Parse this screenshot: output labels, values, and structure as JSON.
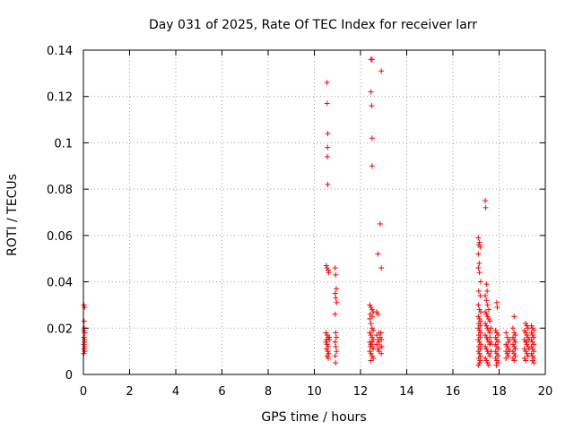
{
  "chart_data": {
    "type": "scatter",
    "title": "Day 031 of 2025, Rate Of TEC Index for receiver larr",
    "xlabel": "GPS time / hours",
    "ylabel": "ROTI / TECUs",
    "xlim": [
      0,
      20
    ],
    "ylim": [
      0,
      0.14
    ],
    "x_ticks": [
      "0",
      "2",
      "4",
      "6",
      "8",
      "10",
      "12",
      "14",
      "16",
      "18",
      "20"
    ],
    "y_ticks": [
      "0",
      "0.02",
      "0.04",
      "0.06",
      "0.08",
      "0.1",
      "0.12",
      "0.14"
    ],
    "grid": true,
    "marker": "+",
    "marker_color": "#ff0000",
    "series": [
      {
        "name": "ROTI",
        "points": [
          [
            0.02,
            0.03
          ],
          [
            0.05,
            0.029
          ],
          [
            0.03,
            0.023
          ],
          [
            0.02,
            0.019
          ],
          [
            0.06,
            0.018
          ],
          [
            0.03,
            0.016
          ],
          [
            0.06,
            0.015
          ],
          [
            0.02,
            0.013
          ],
          [
            0.05,
            0.012
          ],
          [
            0.03,
            0.011
          ],
          [
            0.06,
            0.01
          ],
          [
            0.02,
            0.009
          ],
          [
            0.05,
            0.014
          ],
          [
            0.04,
            0.02
          ],
          [
            10.55,
            0.126
          ],
          [
            10.55,
            0.117
          ],
          [
            10.58,
            0.104
          ],
          [
            10.57,
            0.098
          ],
          [
            10.56,
            0.094
          ],
          [
            10.58,
            0.082
          ],
          [
            10.52,
            0.047
          ],
          [
            10.55,
            0.046
          ],
          [
            10.6,
            0.045
          ],
          [
            10.62,
            0.044
          ],
          [
            10.5,
            0.018
          ],
          [
            10.55,
            0.017
          ],
          [
            10.6,
            0.016
          ],
          [
            10.65,
            0.015
          ],
          [
            10.5,
            0.014
          ],
          [
            10.55,
            0.013
          ],
          [
            10.6,
            0.012
          ],
          [
            10.52,
            0.011
          ],
          [
            10.58,
            0.01
          ],
          [
            10.62,
            0.009
          ],
          [
            10.55,
            0.008
          ],
          [
            10.6,
            0.007
          ],
          [
            10.65,
            0.016
          ],
          [
            10.53,
            0.015
          ],
          [
            10.9,
            0.046
          ],
          [
            10.92,
            0.043
          ],
          [
            10.95,
            0.037
          ],
          [
            10.9,
            0.035
          ],
          [
            10.93,
            0.033
          ],
          [
            10.96,
            0.031
          ],
          [
            10.9,
            0.026
          ],
          [
            10.92,
            0.018
          ],
          [
            10.95,
            0.016
          ],
          [
            10.9,
            0.014
          ],
          [
            10.93,
            0.012
          ],
          [
            10.96,
            0.01
          ],
          [
            10.9,
            0.008
          ],
          [
            10.92,
            0.005
          ],
          [
            12.45,
            0.136
          ],
          [
            12.5,
            0.136
          ],
          [
            12.45,
            0.122
          ],
          [
            12.48,
            0.116
          ],
          [
            12.5,
            0.102
          ],
          [
            12.5,
            0.09
          ],
          [
            12.4,
            0.03
          ],
          [
            12.45,
            0.029
          ],
          [
            12.5,
            0.028
          ],
          [
            12.55,
            0.027
          ],
          [
            12.42,
            0.026
          ],
          [
            12.5,
            0.025
          ],
          [
            12.4,
            0.024
          ],
          [
            12.45,
            0.022
          ],
          [
            12.5,
            0.02
          ],
          [
            12.55,
            0.019
          ],
          [
            12.4,
            0.018
          ],
          [
            12.45,
            0.017
          ],
          [
            12.5,
            0.016
          ],
          [
            12.55,
            0.015
          ],
          [
            12.4,
            0.014
          ],
          [
            12.45,
            0.013
          ],
          [
            12.5,
            0.012
          ],
          [
            12.55,
            0.011
          ],
          [
            12.4,
            0.01
          ],
          [
            12.45,
            0.009
          ],
          [
            12.5,
            0.008
          ],
          [
            12.55,
            0.007
          ],
          [
            12.45,
            0.006
          ],
          [
            12.5,
            0.014
          ],
          [
            12.42,
            0.012
          ],
          [
            12.7,
            0.027
          ],
          [
            12.75,
            0.026
          ],
          [
            12.8,
            0.018
          ],
          [
            12.7,
            0.017
          ],
          [
            12.85,
            0.016
          ],
          [
            12.75,
            0.015
          ],
          [
            12.8,
            0.014
          ],
          [
            12.7,
            0.013
          ],
          [
            12.85,
            0.012
          ],
          [
            12.75,
            0.011
          ],
          [
            12.8,
            0.01
          ],
          [
            12.75,
            0.052
          ],
          [
            12.9,
            0.046
          ],
          [
            12.85,
            0.065
          ],
          [
            12.9,
            0.131
          ],
          [
            12.88,
            0.018
          ],
          [
            12.9,
            0.015
          ],
          [
            12.92,
            0.012
          ],
          [
            12.9,
            0.009
          ],
          [
            17.1,
            0.059
          ],
          [
            17.15,
            0.057
          ],
          [
            17.12,
            0.056
          ],
          [
            17.18,
            0.055
          ],
          [
            17.1,
            0.052
          ],
          [
            17.14,
            0.048
          ],
          [
            17.1,
            0.046
          ],
          [
            17.15,
            0.044
          ],
          [
            17.2,
            0.04
          ],
          [
            17.12,
            0.036
          ],
          [
            17.18,
            0.034
          ],
          [
            17.1,
            0.03
          ],
          [
            17.15,
            0.028
          ],
          [
            17.2,
            0.027
          ],
          [
            17.1,
            0.025
          ],
          [
            17.15,
            0.024
          ],
          [
            17.2,
            0.023
          ],
          [
            17.12,
            0.022
          ],
          [
            17.18,
            0.021
          ],
          [
            17.1,
            0.02
          ],
          [
            17.15,
            0.019
          ],
          [
            17.2,
            0.018
          ],
          [
            17.12,
            0.017
          ],
          [
            17.18,
            0.016
          ],
          [
            17.1,
            0.015
          ],
          [
            17.15,
            0.014
          ],
          [
            17.2,
            0.013
          ],
          [
            17.12,
            0.012
          ],
          [
            17.18,
            0.011
          ],
          [
            17.1,
            0.01
          ],
          [
            17.15,
            0.009
          ],
          [
            17.2,
            0.008
          ],
          [
            17.12,
            0.007
          ],
          [
            17.18,
            0.006
          ],
          [
            17.15,
            0.005
          ],
          [
            17.1,
            0.004
          ],
          [
            17.4,
            0.075
          ],
          [
            17.42,
            0.072
          ],
          [
            17.45,
            0.039
          ],
          [
            17.48,
            0.036
          ],
          [
            17.4,
            0.034
          ],
          [
            17.45,
            0.032
          ],
          [
            17.5,
            0.03
          ],
          [
            17.55,
            0.028
          ],
          [
            17.4,
            0.027
          ],
          [
            17.45,
            0.026
          ],
          [
            17.5,
            0.025
          ],
          [
            17.55,
            0.024
          ],
          [
            17.6,
            0.023
          ],
          [
            17.4,
            0.022
          ],
          [
            17.45,
            0.021
          ],
          [
            17.5,
            0.02
          ],
          [
            17.55,
            0.019
          ],
          [
            17.6,
            0.018
          ],
          [
            17.4,
            0.017
          ],
          [
            17.45,
            0.016
          ],
          [
            17.5,
            0.015
          ],
          [
            17.55,
            0.014
          ],
          [
            17.6,
            0.013
          ],
          [
            17.4,
            0.012
          ],
          [
            17.45,
            0.011
          ],
          [
            17.5,
            0.01
          ],
          [
            17.55,
            0.009
          ],
          [
            17.6,
            0.008
          ],
          [
            17.4,
            0.007
          ],
          [
            17.45,
            0.006
          ],
          [
            17.5,
            0.005
          ],
          [
            17.55,
            0.004
          ],
          [
            17.6,
            0.016
          ],
          [
            17.65,
            0.014
          ],
          [
            17.65,
            0.02
          ],
          [
            17.65,
            0.01
          ],
          [
            17.9,
            0.031
          ],
          [
            17.92,
            0.029
          ],
          [
            17.85,
            0.019
          ],
          [
            17.9,
            0.018
          ],
          [
            17.95,
            0.017
          ],
          [
            17.85,
            0.016
          ],
          [
            17.9,
            0.015
          ],
          [
            17.95,
            0.014
          ],
          [
            17.85,
            0.013
          ],
          [
            17.9,
            0.012
          ],
          [
            17.95,
            0.011
          ],
          [
            17.85,
            0.01
          ],
          [
            17.9,
            0.009
          ],
          [
            17.95,
            0.008
          ],
          [
            17.85,
            0.007
          ],
          [
            17.9,
            0.006
          ],
          [
            17.95,
            0.005
          ],
          [
            17.88,
            0.004
          ],
          [
            18.3,
            0.018
          ],
          [
            18.35,
            0.016
          ],
          [
            18.4,
            0.014
          ],
          [
            18.3,
            0.013
          ],
          [
            18.35,
            0.012
          ],
          [
            18.4,
            0.011
          ],
          [
            18.3,
            0.01
          ],
          [
            18.35,
            0.009
          ],
          [
            18.4,
            0.008
          ],
          [
            18.3,
            0.007
          ],
          [
            18.45,
            0.015
          ],
          [
            18.45,
            0.01
          ],
          [
            18.65,
            0.025
          ],
          [
            18.6,
            0.02
          ],
          [
            18.65,
            0.018
          ],
          [
            18.7,
            0.017
          ],
          [
            18.6,
            0.016
          ],
          [
            18.65,
            0.015
          ],
          [
            18.7,
            0.014
          ],
          [
            18.6,
            0.013
          ],
          [
            18.65,
            0.012
          ],
          [
            18.7,
            0.011
          ],
          [
            18.6,
            0.01
          ],
          [
            18.65,
            0.009
          ],
          [
            18.7,
            0.008
          ],
          [
            18.6,
            0.007
          ],
          [
            18.65,
            0.006
          ],
          [
            19.15,
            0.022
          ],
          [
            19.2,
            0.021
          ],
          [
            19.25,
            0.02
          ],
          [
            19.1,
            0.019
          ],
          [
            19.15,
            0.018
          ],
          [
            19.2,
            0.017
          ],
          [
            19.25,
            0.016
          ],
          [
            19.1,
            0.015
          ],
          [
            19.15,
            0.014
          ],
          [
            19.2,
            0.013
          ],
          [
            19.25,
            0.012
          ],
          [
            19.1,
            0.011
          ],
          [
            19.15,
            0.01
          ],
          [
            19.2,
            0.009
          ],
          [
            19.25,
            0.008
          ],
          [
            19.1,
            0.007
          ],
          [
            19.15,
            0.006
          ],
          [
            19.2,
            0.014
          ],
          [
            19.3,
            0.015
          ],
          [
            19.3,
            0.011
          ],
          [
            19.4,
            0.021
          ],
          [
            19.45,
            0.02
          ],
          [
            19.5,
            0.019
          ],
          [
            19.4,
            0.018
          ],
          [
            19.45,
            0.017
          ],
          [
            19.5,
            0.016
          ],
          [
            19.4,
            0.015
          ],
          [
            19.45,
            0.014
          ],
          [
            19.5,
            0.013
          ],
          [
            19.4,
            0.012
          ],
          [
            19.45,
            0.011
          ],
          [
            19.5,
            0.01
          ],
          [
            19.4,
            0.009
          ],
          [
            19.45,
            0.008
          ],
          [
            19.5,
            0.007
          ],
          [
            19.45,
            0.006
          ],
          [
            19.5,
            0.005
          ]
        ]
      }
    ]
  }
}
